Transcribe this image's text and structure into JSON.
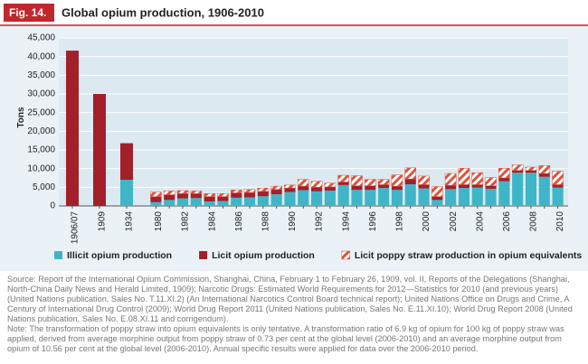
{
  "chart_data": {
    "type": "stacked-bar",
    "figure_label": "Fig. 14.",
    "title": "Global opium production, 1906-2010",
    "y_label": "Tons",
    "categories": [
      "1906/07",
      "1909",
      "1934",
      "1980",
      null,
      "1982",
      null,
      "1984",
      null,
      "1986",
      null,
      "1988",
      null,
      "1990",
      null,
      "1992",
      null,
      "1994",
      null,
      "1996",
      null,
      "1998",
      null,
      "2000",
      null,
      "2002",
      null,
      "2004",
      null,
      "2006",
      null,
      "2008",
      null,
      "2010"
    ],
    "series": [
      {
        "name": "Illicit opium production",
        "color": "#3fb6c8",
        "pattern": "solid",
        "values": [
          0,
          0,
          7000,
          1000,
          1600,
          2000,
          2100,
          1200,
          1300,
          2200,
          2300,
          2600,
          3100,
          3700,
          4200,
          3900,
          4100,
          5600,
          4300,
          4300,
          4800,
          4300,
          5800,
          4700,
          1600,
          4500,
          4800,
          4900,
          4600,
          6600,
          8900,
          8900,
          7800,
          4900
        ]
      },
      {
        "name": "Licit opium production",
        "color": "#a3202a",
        "pattern": "solid",
        "values": [
          41600,
          30000,
          9800,
          1500,
          1400,
          1300,
          1200,
          1300,
          1200,
          1300,
          1300,
          1300,
          1300,
          1100,
          1100,
          1100,
          1000,
          800,
          1100,
          1100,
          900,
          1000,
          1400,
          1000,
          900,
          1000,
          900,
          800,
          800,
          900,
          600,
          600,
          900,
          800
        ]
      },
      {
        "name": "Licit poppy straw production in opium equivalents",
        "color": "#d9553f",
        "pattern": "hatch",
        "values": [
          0,
          0,
          0,
          1200,
          1000,
          800,
          700,
          800,
          800,
          800,
          800,
          900,
          900,
          800,
          1800,
          1600,
          1000,
          1800,
          2700,
          1700,
          1400,
          3000,
          3000,
          2300,
          2700,
          3200,
          4400,
          3200,
          2200,
          2600,
          1500,
          900,
          2100,
          3600
        ]
      }
    ],
    "ylim": [
      0,
      45000
    ],
    "yticks": [
      0,
      {
        "value": 5000,
        "label": "5,000"
      },
      {
        "value": 10000,
        "label": "10,000"
      },
      {
        "value": 15000,
        "label": "15,000"
      },
      {
        "value": 20000,
        "label": "20,000"
      },
      {
        "value": 25000,
        "label": "25,000"
      },
      {
        "value": 30000,
        "label": "30,000"
      },
      {
        "value": 35000,
        "label": "35,000"
      },
      {
        "value": 40000,
        "label": "40,000"
      },
      {
        "value": 45000,
        "label": "45,000"
      }
    ],
    "grid": true,
    "legend": "bottom",
    "source": "Source: Report of the International Opium Commission, Shanghai, China, February 1 to February 26, 1909, vol. II, Reports of the Delegations (Shanghai, North-China Daily News and Herald Limited, 1909); Narcotic Drugs: Estimated World Requirements for 2012—Statistics for 2010 (and previous years) (United Nations publication, Sales No. T.11.XI.2) (An International Narcotics Control Board technical report); United Nations Office on Drugs and Crime, A Century of International Drug Control (2009); World Drug Report 2011 (United Nations publication, Sales No. E.11.XI.10); World Drug Report 2008 (United Nations publication, Sales No. E.08.XI.11 and corrigendum).",
    "note": "Note: The transformation of poppy straw into opium equivalents is only tentative. A transformation ratio of 6.9 kg of opium for 100 kg of poppy straw was applied, derived from average morphine output from poppy straw of 0.73 per cent at the global level (2006-2010) and an average morphine output from opium of 10.56 per cent at the global level (2006-2010). Annual specific results were applied for data over the 2006-2010 period."
  }
}
